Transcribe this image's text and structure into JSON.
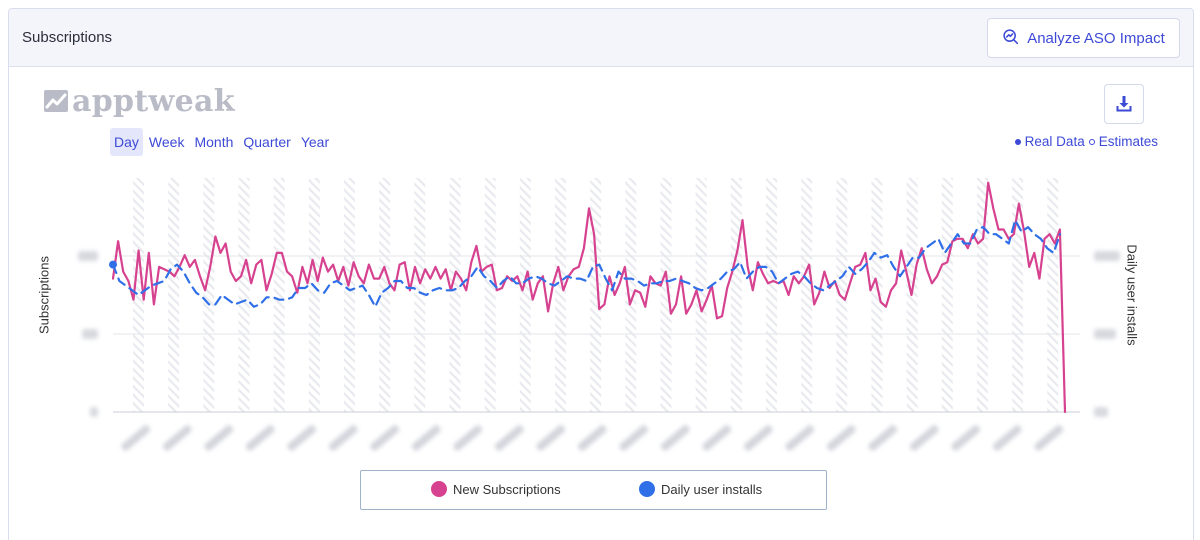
{
  "header": {
    "title": "Subscriptions",
    "aso_button_label": "Analyze ASO Impact"
  },
  "logo": {
    "text": "apptweak"
  },
  "periods": [
    {
      "label": "Day",
      "active": true
    },
    {
      "label": "Week",
      "active": false
    },
    {
      "label": "Month",
      "active": false
    },
    {
      "label": "Quarter",
      "active": false
    },
    {
      "label": "Year",
      "active": false
    }
  ],
  "data_toggle": {
    "real_label": "Real Data",
    "estimates_label": "Estimates"
  },
  "axis_titles": {
    "left": "Subscriptions",
    "right": "Daily user installs"
  },
  "icons": {
    "analyze": "analyze-icon",
    "download": "download-icon",
    "logo": "apptweak-logo-icon"
  },
  "colors": {
    "accent": "#3d4ad6",
    "subscriptions": "#d6428f",
    "installs": "#2f6fe8"
  },
  "legend": {
    "series1": "New Subscriptions",
    "series2": "Daily user installs"
  },
  "chart_data": {
    "type": "line",
    "note_blurred_axes": true,
    "series": [
      {
        "name": "New Subscriptions",
        "color": "#d6428f",
        "style": "solid",
        "values": [
          0.57,
          0.73,
          0.6,
          0.56,
          0.48,
          0.69,
          0.48,
          0.68,
          0.46,
          0.62,
          0.61,
          0.6,
          0.58,
          0.62,
          0.67,
          0.62,
          0.65,
          0.58,
          0.52,
          0.62,
          0.75,
          0.68,
          0.72,
          0.6,
          0.56,
          0.58,
          0.65,
          0.55,
          0.63,
          0.65,
          0.52,
          0.59,
          0.68,
          0.68,
          0.6,
          0.58,
          0.51,
          0.62,
          0.55,
          0.65,
          0.56,
          0.66,
          0.6,
          0.63,
          0.56,
          0.62,
          0.54,
          0.64,
          0.58,
          0.55,
          0.63,
          0.57,
          0.57,
          0.62,
          0.55,
          0.52,
          0.63,
          0.64,
          0.52,
          0.62,
          0.55,
          0.61,
          0.57,
          0.62,
          0.57,
          0.61,
          0.52,
          0.6,
          0.57,
          0.52,
          0.64,
          0.71,
          0.6,
          0.62,
          0.63,
          0.52,
          0.53,
          0.58,
          0.56,
          0.58,
          0.52,
          0.6,
          0.48,
          0.55,
          0.58,
          0.43,
          0.55,
          0.62,
          0.52,
          0.58,
          0.61,
          0.62,
          0.7,
          0.87,
          0.76,
          0.44,
          0.46,
          0.58,
          0.5,
          0.55,
          0.62,
          0.46,
          0.52,
          0.51,
          0.45,
          0.58,
          0.55,
          0.54,
          0.6,
          0.42,
          0.46,
          0.58,
          0.42,
          0.46,
          0.52,
          0.43,
          0.48,
          0.54,
          0.4,
          0.41,
          0.53,
          0.6,
          0.69,
          0.82,
          0.62,
          0.52,
          0.64,
          0.59,
          0.55,
          0.56,
          0.55,
          0.56,
          0.5,
          0.58,
          0.55,
          0.58,
          0.63,
          0.46,
          0.51,
          0.6,
          0.53,
          0.56,
          0.5,
          0.48,
          0.55,
          0.62,
          0.63,
          0.68,
          0.52,
          0.57,
          0.47,
          0.45,
          0.52,
          0.55,
          0.69,
          0.6,
          0.5,
          0.63,
          0.7,
          0.61,
          0.55,
          0.58,
          0.63,
          0.64,
          0.73,
          0.74,
          0.74,
          0.7,
          0.76,
          0.72,
          0.74,
          0.98,
          0.87,
          0.78,
          0.78,
          0.74,
          0.76,
          0.89,
          0.77,
          0.62,
          0.68,
          0.57,
          0.74,
          0.76,
          0.72,
          0.78,
          0.0
        ]
      },
      {
        "name": "Daily user installs",
        "color": "#2f6fe8",
        "style": "dashed",
        "values": [
          0.63,
          0.56,
          0.54,
          0.52,
          0.5,
          0.52,
          0.54,
          0.55,
          0.56,
          0.61,
          0.63,
          0.6,
          0.55,
          0.51,
          0.49,
          0.46,
          0.46,
          0.5,
          0.48,
          0.46,
          0.47,
          0.48,
          0.45,
          0.46,
          0.49,
          0.49,
          0.48,
          0.48,
          0.49,
          0.53,
          0.53,
          0.55,
          0.52,
          0.51,
          0.55,
          0.56,
          0.54,
          0.52,
          0.53,
          0.54,
          0.5,
          0.45,
          0.51,
          0.53,
          0.56,
          0.56,
          0.53,
          0.53,
          0.51,
          0.5,
          0.52,
          0.53,
          0.52,
          0.52,
          0.53,
          0.56,
          0.58,
          0.62,
          0.58,
          0.56,
          0.53,
          0.56,
          0.58,
          0.55,
          0.55,
          0.57,
          0.58,
          0.57,
          0.55,
          0.54,
          0.56,
          0.58,
          0.57,
          0.57,
          0.56,
          0.62,
          0.63,
          0.57,
          0.52,
          0.6,
          0.57,
          0.57,
          0.56,
          0.54,
          0.55,
          0.55,
          0.56,
          0.56,
          0.57,
          0.56,
          0.55,
          0.53,
          0.52,
          0.53,
          0.55,
          0.57,
          0.6,
          0.61,
          0.64,
          0.57,
          0.6,
          0.62,
          0.62,
          0.6,
          0.55,
          0.57,
          0.59,
          0.6,
          0.58,
          0.55,
          0.53,
          0.52,
          0.54,
          0.56,
          0.58,
          0.62,
          0.59,
          0.61,
          0.64,
          0.68,
          0.66,
          0.67,
          0.62,
          0.58,
          0.62,
          0.66,
          0.66,
          0.7,
          0.72,
          0.74,
          0.68,
          0.72,
          0.76,
          0.72,
          0.72,
          0.78,
          0.79,
          0.76,
          0.76,
          0.74,
          0.72,
          0.82,
          0.77,
          0.79,
          0.76,
          0.74,
          0.7,
          0.68,
          0.76
        ]
      }
    ],
    "ylim": [
      0,
      1
    ],
    "xlabel": "",
    "ylabel": "Subscriptions",
    "y2label": "Daily user installs",
    "grid": true
  }
}
